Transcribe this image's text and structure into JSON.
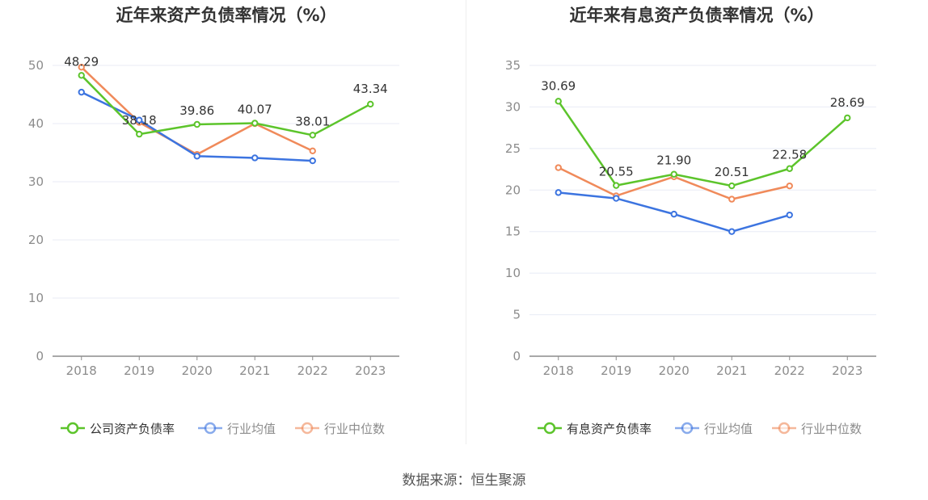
{
  "source": "数据来源：恒生聚源",
  "colors": {
    "company": "#5cc42b",
    "avg": "#3c74e0",
    "median": "#f08a5a",
    "axis": "#8c8c8c",
    "grid": "#e8ebf5"
  },
  "chart_data": [
    {
      "type": "line",
      "title": "近年来资产负债率情况（%）",
      "categories": [
        "2018",
        "2019",
        "2020",
        "2021",
        "2022",
        "2023"
      ],
      "ylim": [
        0,
        50
      ],
      "yticks": [
        0,
        10,
        20,
        30,
        40,
        50
      ],
      "grid": true,
      "legend_position": "bottom",
      "series": [
        {
          "name": "公司资产负债率",
          "color": "#5cc42b",
          "labeled": true,
          "values": [
            48.29,
            38.18,
            39.86,
            40.07,
            38.01,
            43.34
          ],
          "labels": [
            "48.29",
            "38.18",
            "39.86",
            "40.07",
            "38.01",
            "43.34"
          ]
        },
        {
          "name": "行业均值",
          "color": "#3c74e0",
          "labeled": false,
          "values": [
            45.4,
            40.6,
            34.4,
            34.1,
            33.6,
            null
          ]
        },
        {
          "name": "行业中位数",
          "color": "#f08a5a",
          "labeled": false,
          "values": [
            49.7,
            40.2,
            34.7,
            40.0,
            35.3,
            null
          ]
        }
      ]
    },
    {
      "type": "line",
      "title": "近年来有息资产负债率情况（%）",
      "categories": [
        "2018",
        "2019",
        "2020",
        "2021",
        "2022",
        "2023"
      ],
      "ylim": [
        0,
        35
      ],
      "yticks": [
        0,
        5,
        10,
        15,
        20,
        25,
        30,
        35
      ],
      "grid": true,
      "legend_position": "bottom",
      "series": [
        {
          "name": "有息资产负债率",
          "color": "#5cc42b",
          "labeled": true,
          "values": [
            30.69,
            20.55,
            21.9,
            20.51,
            22.58,
            28.69
          ],
          "labels": [
            "30.69",
            "20.55",
            "21.90",
            "20.51",
            "22.58",
            "28.69"
          ]
        },
        {
          "name": "行业均值",
          "color": "#3c74e0",
          "labeled": false,
          "values": [
            19.7,
            19.0,
            17.1,
            15.0,
            17.0,
            null
          ]
        },
        {
          "name": "行业中位数",
          "color": "#f08a5a",
          "labeled": false,
          "values": [
            22.7,
            19.3,
            21.6,
            18.9,
            20.5,
            null
          ]
        }
      ]
    }
  ]
}
